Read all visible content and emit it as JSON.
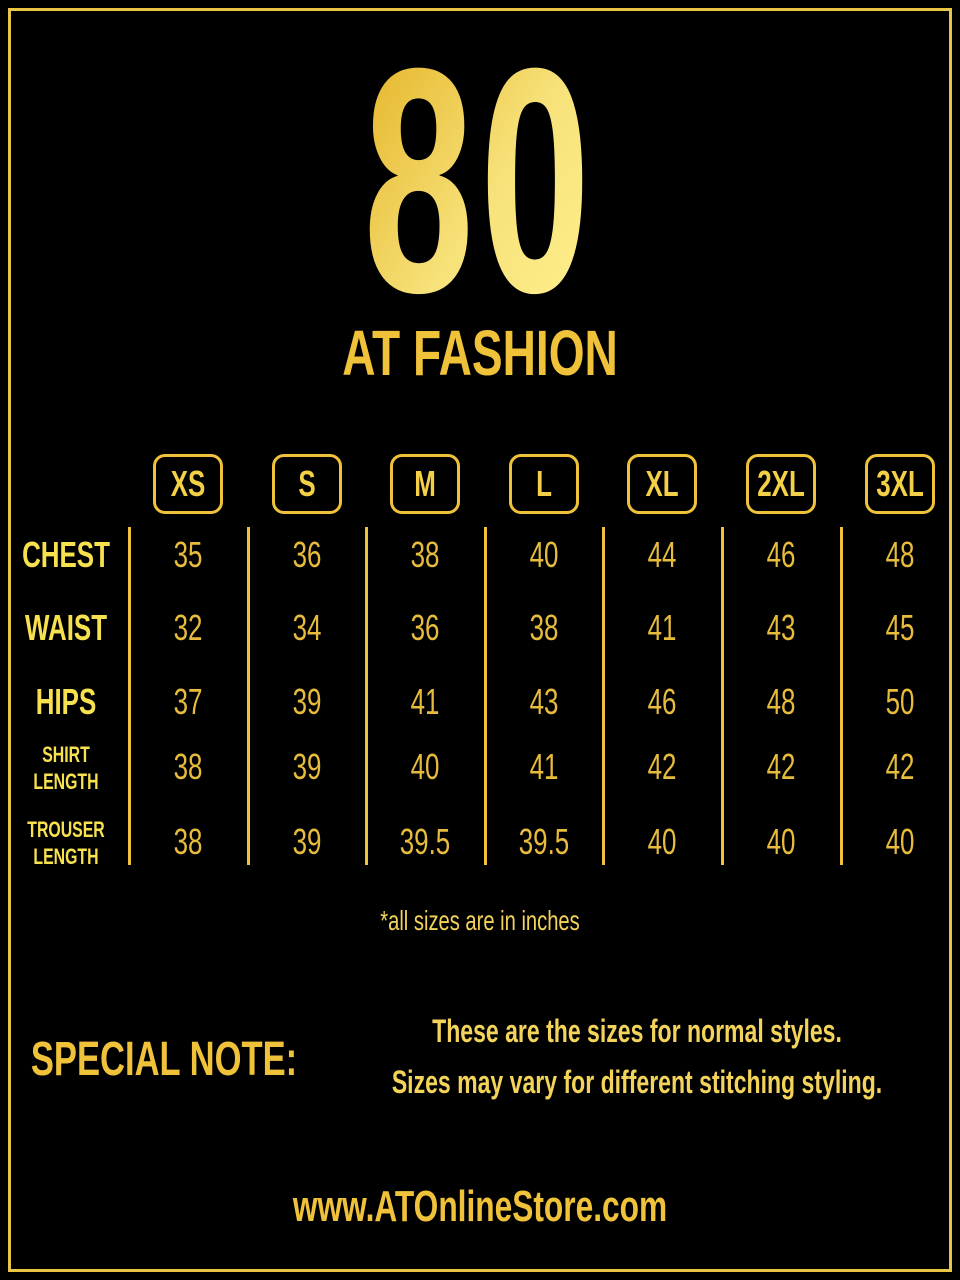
{
  "logo": "80",
  "brand": "AT FASHION",
  "table": {
    "headers": [
      "XS",
      "S",
      "M",
      "L",
      "XL",
      "2XL",
      "3XL"
    ],
    "rows": [
      {
        "label": "CHEST",
        "cells": [
          "35",
          "36",
          "38",
          "40",
          "44",
          "46",
          "48"
        ]
      },
      {
        "label": "WAIST",
        "cells": [
          "32",
          "34",
          "36",
          "38",
          "41",
          "43",
          "45"
        ]
      },
      {
        "label": "HIPS",
        "cells": [
          "37",
          "39",
          "41",
          "43",
          "46",
          "48",
          "50"
        ]
      },
      {
        "label": "SHIRT LENGTH",
        "cells": [
          "38",
          "39",
          "40",
          "41",
          "42",
          "42",
          "42"
        ]
      },
      {
        "label": "TROUSER LENGTH",
        "cells": [
          "38",
          "39",
          "39.5",
          "39.5",
          "40",
          "40",
          "40"
        ]
      }
    ]
  },
  "units_note": "*all sizes are in inches",
  "special_note": {
    "title": "SPECIAL NOTE:",
    "lines": [
      "These are the sizes for normal styles.",
      "Sizes may vary for different stitching styling."
    ]
  },
  "website": "www.ATOnlineStore.com"
}
